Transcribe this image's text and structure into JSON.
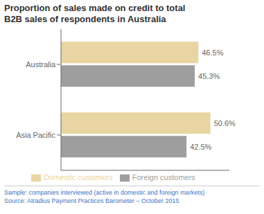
{
  "chart_data": {
    "type": "bar",
    "orientation": "horizontal",
    "title": "Proportion of sales made on credit to total\nB2B sales of respondents in Australia",
    "categories": [
      "Australia",
      "Asia Pacific"
    ],
    "series": [
      {
        "name": "Domestic customers",
        "color": "#e8d5a3",
        "values": [
          46.5,
          50.6
        ],
        "value_labels": [
          "46.5%",
          "50.6%"
        ]
      },
      {
        "name": "Foreign customers",
        "color": "#9e9e9e",
        "values": [
          45.3,
          42.5
        ],
        "value_labels": [
          "45.3%",
          "42.5%"
        ]
      }
    ],
    "xlim": [
      0,
      57
    ],
    "tick_labels": "y",
    "grid": false,
    "data_labels": true,
    "legend": "bottom",
    "annotations": [
      "Sample: companies interviewed (active in domestic and foreign markets)",
      "Source: Atradius Payment Practices Barometer – October 2015"
    ]
  }
}
